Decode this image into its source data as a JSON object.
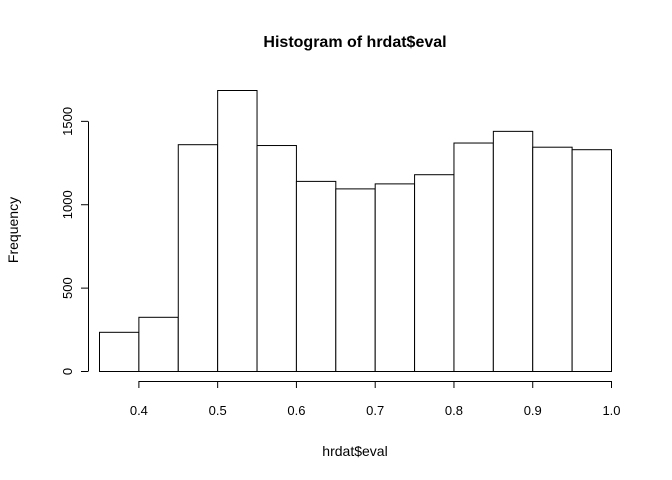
{
  "chart_data": {
    "type": "bar",
    "title": "Histogram of hrdat$eval",
    "xlabel": "hrdat$eval",
    "ylabel": "Frequency",
    "bin_edges": [
      0.35,
      0.4,
      0.45,
      0.5,
      0.55,
      0.6,
      0.65,
      0.7,
      0.75,
      0.8,
      0.85,
      0.9,
      0.95,
      1.0
    ],
    "values": [
      235,
      325,
      1360,
      1685,
      1355,
      1140,
      1095,
      1125,
      1180,
      1370,
      1440,
      1345,
      1330
    ],
    "xlim": [
      0.35,
      1.0
    ],
    "ylim": [
      0,
      1685
    ],
    "x_ticks": [
      0.4,
      0.5,
      0.6,
      0.7,
      0.8,
      0.9,
      1.0
    ],
    "x_tick_labels": [
      "0.4",
      "0.5",
      "0.6",
      "0.7",
      "0.8",
      "0.9",
      "1.0"
    ],
    "y_ticks": [
      0,
      500,
      1000,
      1500
    ],
    "y_tick_labels": [
      "0",
      "500",
      "1000",
      "1500"
    ],
    "grid": false,
    "bar_fill": "#ffffff",
    "bar_stroke": "#000000"
  }
}
